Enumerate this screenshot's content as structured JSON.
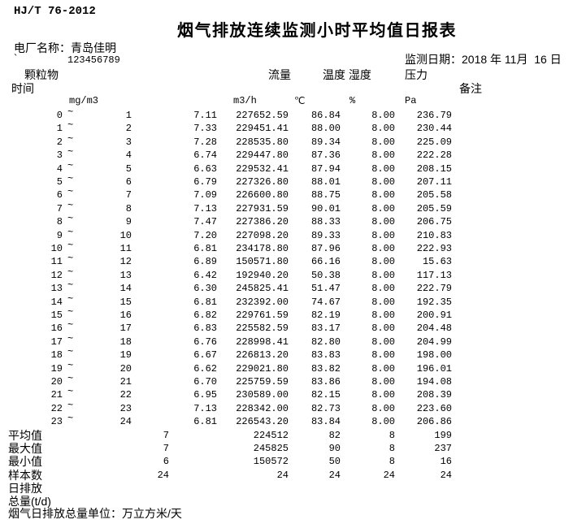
{
  "page": {
    "background": "#ffffff",
    "text_color": "#000000"
  },
  "header": {
    "standard": "HJ/T 76-2012",
    "title": "烟气排放连续监测小时平均值日报表",
    "plant_label": "电厂名称：",
    "plant_name": "青岛佳明",
    "tick": "`",
    "plant_code": "123456789",
    "date_label": "监测日期：",
    "date_value": "2018 年 11月  16 日"
  },
  "table": {
    "col_time": "时间",
    "col_dust": "颗粒物",
    "col_flow": "流量",
    "col_temp_hum": "温度 湿度",
    "col_pressure": "压力",
    "col_remark": "备注",
    "unit_dust": "mg/m3",
    "unit_flow": "m3/h",
    "unit_temp": "℃",
    "unit_hum": "%",
    "unit_pressure": "Pa",
    "tilde": "~",
    "rows": [
      {
        "from": "0",
        "to": "1",
        "dust": "7.11",
        "flow": "227652.59",
        "temp": "86.84",
        "hum": "8.00",
        "press": "236.79"
      },
      {
        "from": "1",
        "to": "2",
        "dust": "7.33",
        "flow": "229451.41",
        "temp": "88.00",
        "hum": "8.00",
        "press": "230.44"
      },
      {
        "from": "2",
        "to": "3",
        "dust": "7.28",
        "flow": "228535.80",
        "temp": "89.34",
        "hum": "8.00",
        "press": "225.09"
      },
      {
        "from": "3",
        "to": "4",
        "dust": "6.74",
        "flow": "229447.80",
        "temp": "87.36",
        "hum": "8.00",
        "press": "222.28"
      },
      {
        "from": "4",
        "to": "5",
        "dust": "6.63",
        "flow": "229532.41",
        "temp": "87.94",
        "hum": "8.00",
        "press": "208.15"
      },
      {
        "from": "5",
        "to": "6",
        "dust": "6.79",
        "flow": "227326.80",
        "temp": "88.01",
        "hum": "8.00",
        "press": "207.11"
      },
      {
        "from": "6",
        "to": "7",
        "dust": "7.09",
        "flow": "226600.80",
        "temp": "88.75",
        "hum": "8.00",
        "press": "205.58"
      },
      {
        "from": "7",
        "to": "8",
        "dust": "7.13",
        "flow": "227931.59",
        "temp": "90.01",
        "hum": "8.00",
        "press": "205.59"
      },
      {
        "from": "8",
        "to": "9",
        "dust": "7.47",
        "flow": "227386.20",
        "temp": "88.33",
        "hum": "8.00",
        "press": "206.75"
      },
      {
        "from": "9",
        "to": "10",
        "dust": "7.20",
        "flow": "227098.20",
        "temp": "89.33",
        "hum": "8.00",
        "press": "210.83"
      },
      {
        "from": "10",
        "to": "11",
        "dust": "6.81",
        "flow": "234178.80",
        "temp": "87.96",
        "hum": "8.00",
        "press": "222.93"
      },
      {
        "from": "11",
        "to": "12",
        "dust": "6.89",
        "flow": "150571.80",
        "temp": "66.16",
        "hum": "8.00",
        "press": "15.63"
      },
      {
        "from": "12",
        "to": "13",
        "dust": "6.42",
        "flow": "192940.20",
        "temp": "50.38",
        "hum": "8.00",
        "press": "117.13"
      },
      {
        "from": "13",
        "to": "14",
        "dust": "6.30",
        "flow": "245825.41",
        "temp": "51.47",
        "hum": "8.00",
        "press": "222.79"
      },
      {
        "from": "14",
        "to": "15",
        "dust": "6.81",
        "flow": "232392.00",
        "temp": "74.67",
        "hum": "8.00",
        "press": "192.35"
      },
      {
        "from": "15",
        "to": "16",
        "dust": "6.82",
        "flow": "229761.59",
        "temp": "82.19",
        "hum": "8.00",
        "press": "200.91"
      },
      {
        "from": "16",
        "to": "17",
        "dust": "6.83",
        "flow": "225582.59",
        "temp": "83.17",
        "hum": "8.00",
        "press": "204.48"
      },
      {
        "from": "17",
        "to": "18",
        "dust": "6.76",
        "flow": "228998.41",
        "temp": "82.80",
        "hum": "8.00",
        "press": "204.99"
      },
      {
        "from": "18",
        "to": "19",
        "dust": "6.67",
        "flow": "226813.20",
        "temp": "83.83",
        "hum": "8.00",
        "press": "198.00"
      },
      {
        "from": "19",
        "to": "20",
        "dust": "6.62",
        "flow": "229021.80",
        "temp": "83.82",
        "hum": "8.00",
        "press": "196.01"
      },
      {
        "from": "20",
        "to": "21",
        "dust": "6.70",
        "flow": "225759.59",
        "temp": "83.86",
        "hum": "8.00",
        "press": "194.08"
      },
      {
        "from": "21",
        "to": "22",
        "dust": "6.95",
        "flow": "230589.00",
        "temp": "82.15",
        "hum": "8.00",
        "press": "208.39"
      },
      {
        "from": "22",
        "to": "23",
        "dust": "7.13",
        "flow": "228342.00",
        "temp": "82.73",
        "hum": "8.00",
        "press": "223.60"
      },
      {
        "from": "23",
        "to": "24",
        "dust": "6.81",
        "flow": "226543.20",
        "temp": "83.84",
        "hum": "8.00",
        "press": "206.86"
      }
    ],
    "summary": [
      {
        "label": "平均值",
        "dust": "7",
        "flow": "224512",
        "temp": "82",
        "hum": "8",
        "press": "199"
      },
      {
        "label": "最大值",
        "dust": "7",
        "flow": "245825",
        "temp": "90",
        "hum": "8",
        "press": "237"
      },
      {
        "label": "最小值",
        "dust": "6",
        "flow": "150572",
        "temp": "50",
        "hum": "8",
        "press": "16"
      },
      {
        "label": "样本数",
        "dust": "24",
        "flow": "24",
        "temp": "24",
        "hum": "24",
        "press": "24"
      },
      {
        "label": "日排放",
        "dust": "",
        "flow": "",
        "temp": "",
        "hum": "",
        "press": ""
      },
      {
        "label": "总量(t/d)",
        "dust": "",
        "flow": "",
        "temp": "",
        "hum": "",
        "press": ""
      }
    ]
  },
  "footer": {
    "note": "烟气日排放总量单位：万立方米/天"
  }
}
